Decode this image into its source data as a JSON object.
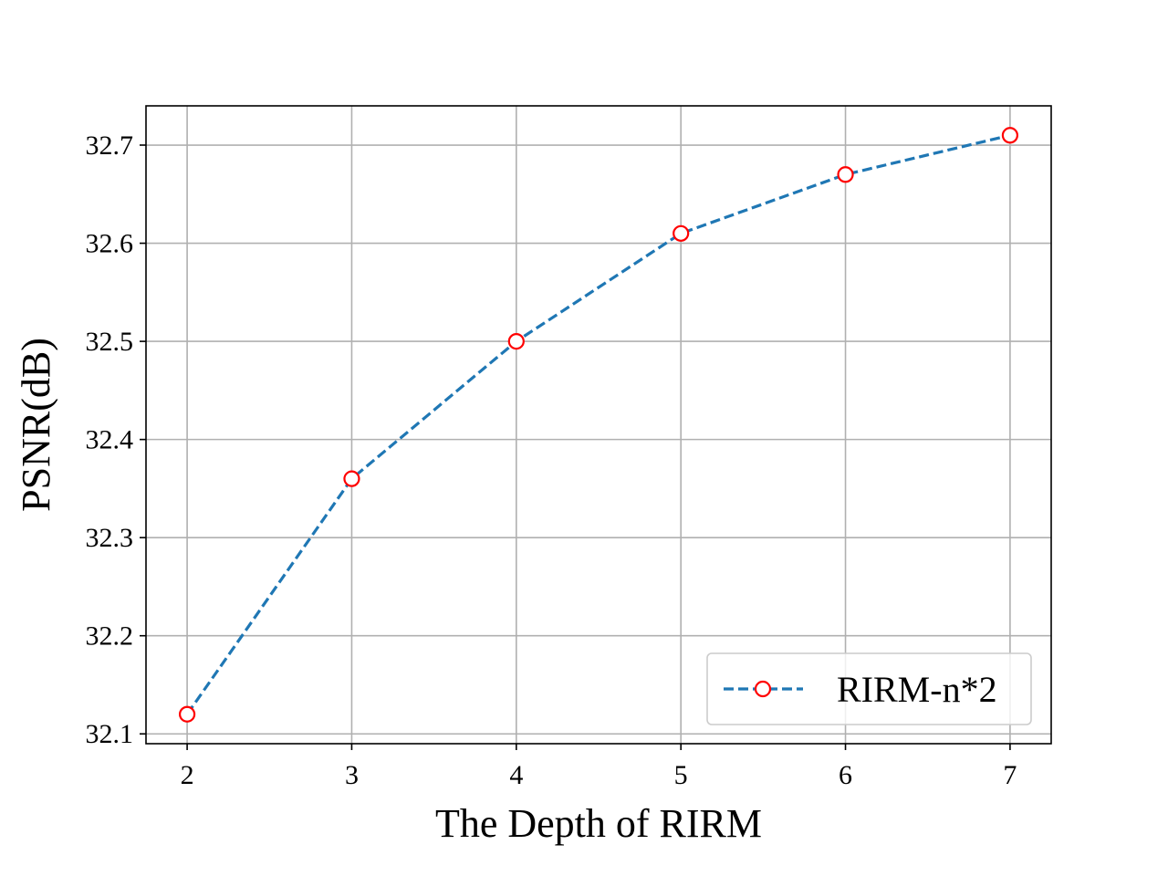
{
  "chart_data": {
    "type": "line",
    "title": "",
    "xlabel": "The Depth of RIRM",
    "ylabel": "PSNR(dB)",
    "x": [
      2,
      3,
      4,
      5,
      6,
      7
    ],
    "x_ticks": [
      "2",
      "3",
      "4",
      "5",
      "6",
      "7"
    ],
    "y_ticks": [
      "32.1",
      "32.2",
      "32.3",
      "32.4",
      "32.5",
      "32.6",
      "32.7"
    ],
    "xlim": [
      1.75,
      7.25
    ],
    "ylim": [
      32.09,
      32.74
    ],
    "grid": true,
    "legend_position": "lower-right",
    "series": [
      {
        "name": "RIRM-n*2",
        "values": [
          32.12,
          32.36,
          32.5,
          32.61,
          32.67,
          32.71
        ],
        "line_color": "#1f77b4",
        "line_style": "dashed",
        "marker": "open-circle",
        "marker_edge_color": "#ff0000",
        "marker_face_color": "#ffffff"
      }
    ]
  }
}
